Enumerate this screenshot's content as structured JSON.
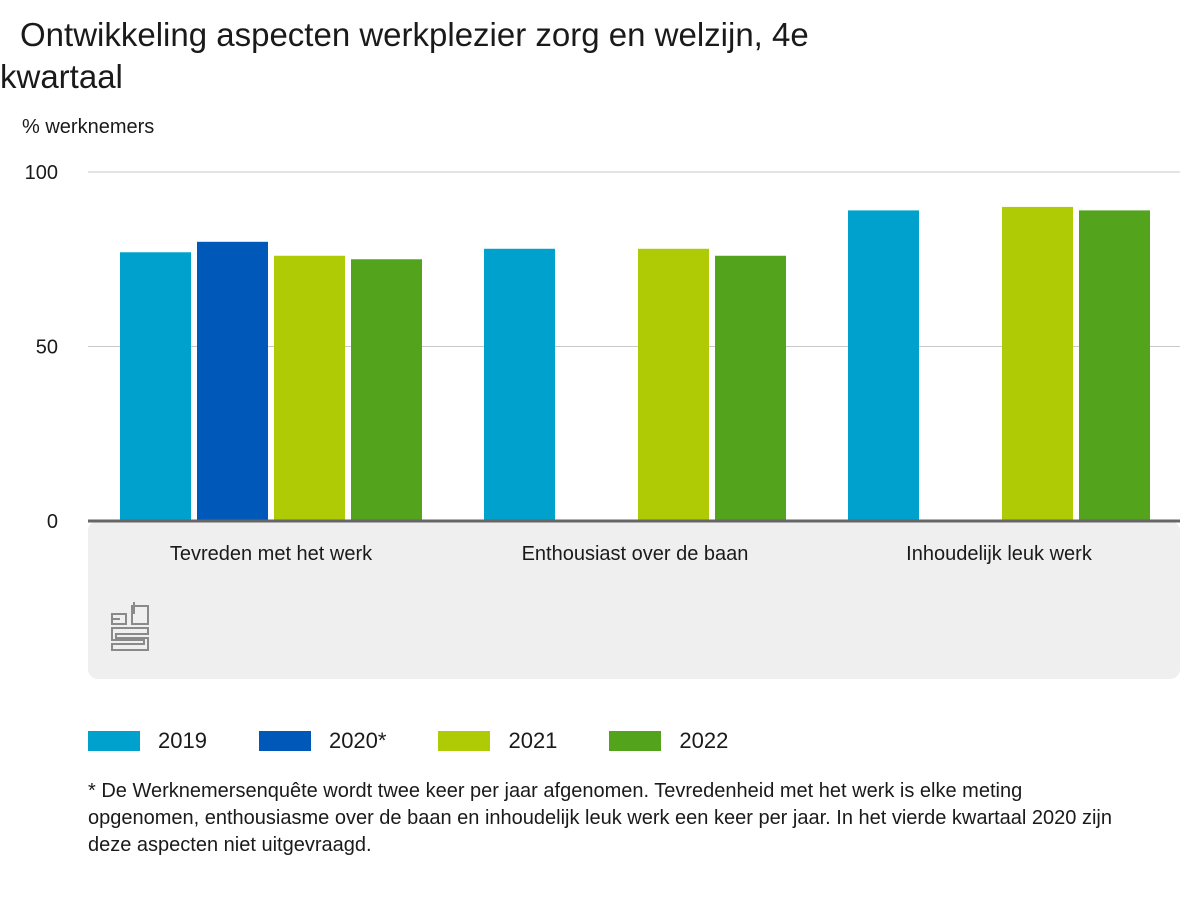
{
  "title": "Ontwikkeling aspecten werkplezier zorg en welzijn, 4e kwartaal",
  "ylabel": "% werknemers",
  "footnote": "* De Werknemersenquête wordt twee keer per jaar afgenomen. Tevredenheid met het werk is elke meting opgenomen, enthousiasme over de baan en inhoudelijk leuk werk een keer per jaar. In het vierde kwartaal 2020 zijn deze aspecten niet uitgevraagd.",
  "logo_text": "cbs",
  "chart_data": {
    "type": "bar",
    "title": "Ontwikkeling aspecten werkplezier zorg en welzijn, 4e kwartaal",
    "ylabel": "% werknemers",
    "xlabel": "",
    "ylim": [
      0,
      100
    ],
    "yticks": [
      0,
      50,
      100
    ],
    "grid": true,
    "legend": "bottom",
    "categories": [
      "Tevreden met het werk",
      "Enthousiast over de baan",
      "Inhoudelijk leuk werk"
    ],
    "series": [
      {
        "name": "2019",
        "color": "#00a1cd",
        "values": [
          77,
          78,
          89
        ]
      },
      {
        "name": "2020*",
        "color": "#0058b8",
        "values": [
          80,
          null,
          null
        ]
      },
      {
        "name": "2021",
        "color": "#afcb05",
        "values": [
          76,
          78,
          90
        ]
      },
      {
        "name": "2022",
        "color": "#53a31d",
        "values": [
          75,
          76,
          89
        ]
      }
    ]
  }
}
